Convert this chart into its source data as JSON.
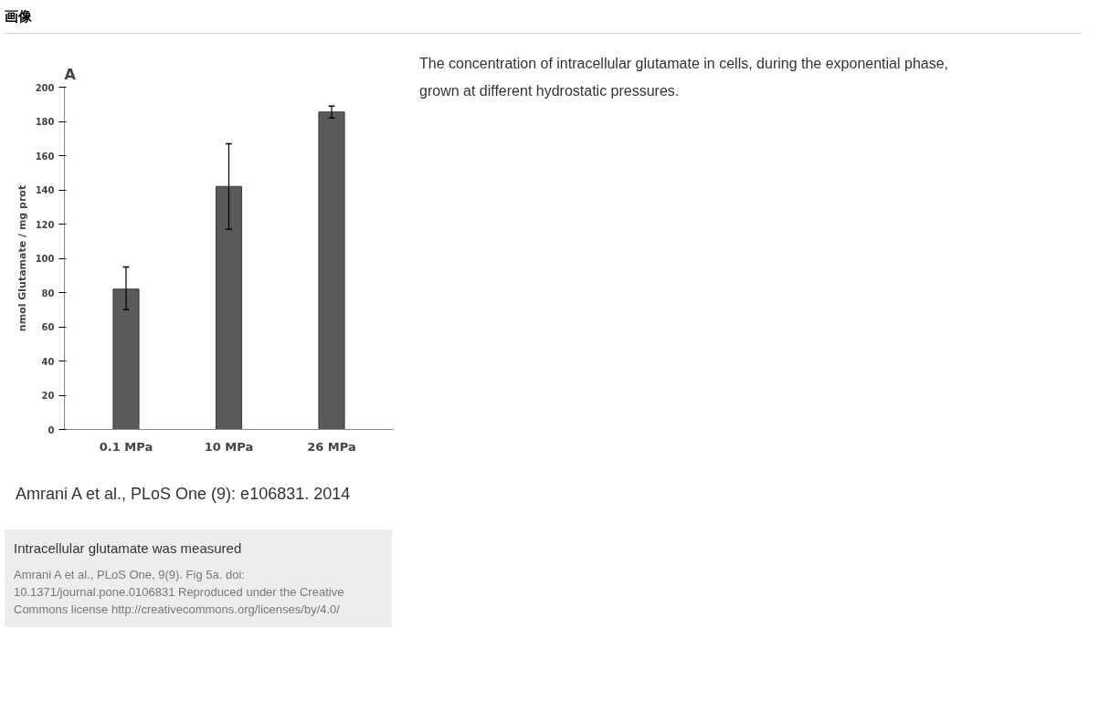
{
  "chart_data": {
    "type": "bar",
    "categories": [
      "0.1 MPa",
      "10 MPa",
      "26 MPa"
    ],
    "values": [
      82,
      142,
      185.5
    ],
    "errors": [
      [
        70,
        95
      ],
      [
        117,
        167
      ],
      [
        182,
        189
      ]
    ],
    "color": "#5a5a5a",
    "ylabel": "nmol Glutamate / mg prot",
    "ylim": [
      0,
      200
    ],
    "yticks": [
      0,
      20,
      40,
      60,
      80,
      100,
      120,
      140,
      160,
      180,
      200
    ],
    "grid": false,
    "annotations": [
      "画像",
      "A",
      "Amrani A et al., PLoS One (9): e106831. 2014",
      "Intracellular glutamate was measured",
      "Amrani A et al., PLoS One, 9(9). Fig 5a. doi: 10.1371/journal.pone.0106831 Reproduced under the Creative Commons license http://creativecommons.org/licenses/by/4.0/",
      "The concentration of intracellular glutamate in cells, during the exponential phase, grown at different hydrostatic pressures."
    ]
  }
}
